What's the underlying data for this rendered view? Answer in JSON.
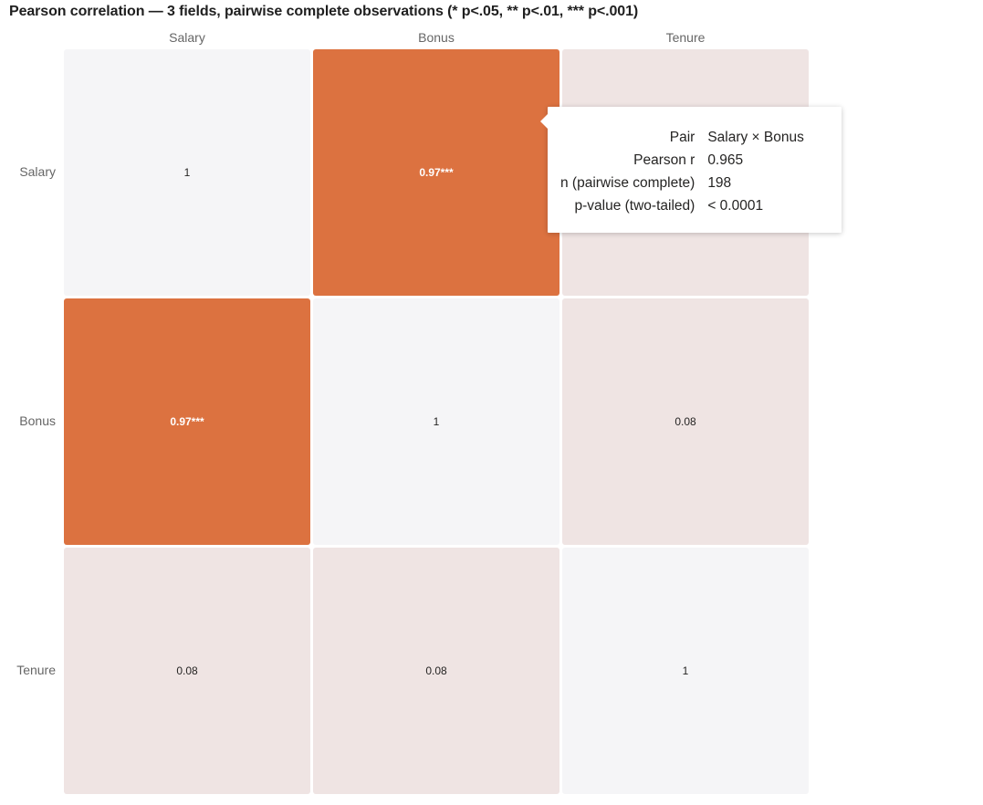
{
  "title": "Pearson correlation — 3 fields, pairwise complete observations (* p<.05, ** p<.01, *** p<.001)",
  "colors": {
    "strong_positive": "#dc7240",
    "weak_positive": "#efe4e3",
    "diagonal": "#f5f5f7",
    "label_dark": "#252423",
    "label_light": "#ffffff"
  },
  "chart_data": {
    "type": "heatmap",
    "title": "Pearson correlation — 3 fields, pairwise complete observations (* p<.05, ** p<.01, *** p<.001)",
    "x_categories": [
      "Salary",
      "Bonus",
      "Tenure"
    ],
    "y_categories": [
      "Salary",
      "Bonus",
      "Tenure"
    ],
    "values": [
      [
        1,
        0.97,
        null
      ],
      [
        0.97,
        1,
        0.08
      ],
      [
        0.08,
        0.08,
        1
      ]
    ],
    "labels": [
      [
        "1",
        "0.97***",
        ""
      ],
      [
        "0.97***",
        "1",
        "0.08"
      ],
      [
        "0.08",
        "0.08",
        "1"
      ]
    ],
    "legend": "none",
    "grid": false
  },
  "tooltip": {
    "rows": [
      {
        "key": "Pair",
        "value": "Salary × Bonus"
      },
      {
        "key": "Pearson r",
        "value": "0.965"
      },
      {
        "key": "n (pairwise complete)",
        "value": "198"
      },
      {
        "key": "p-value (two-tailed)",
        "value": "< 0.0001"
      }
    ]
  }
}
